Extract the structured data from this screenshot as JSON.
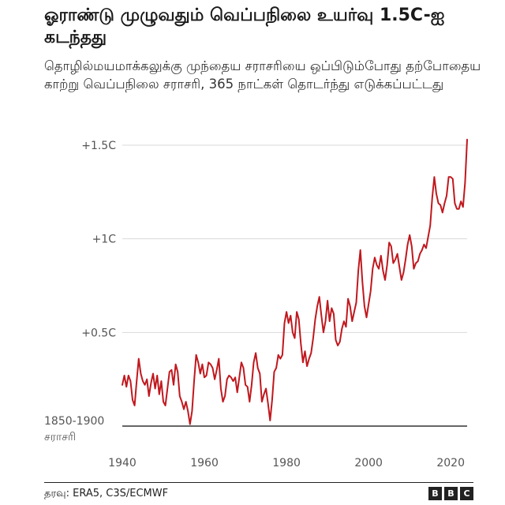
{
  "title": "ஓராண்டு முழுவதும் வெப்பநிலை உயர்வு 1.5C-ஐ கடந்தது",
  "subtitle": "தொழில்மயமாக்கலுக்கு முந்தைய சராசரியை ஒப்பிடும்போது தற்போதைய காற்று வெப்பநிலை சராசரி, 365 நாட்கள் தொடர்ந்து எடுக்கப்பட்டது",
  "source": "தரவு: ERA5, C3S/ECMWF",
  "logo_letters": [
    "B",
    "B",
    "C"
  ],
  "chart_data": {
    "type": "line",
    "xlim": [
      1940,
      2024
    ],
    "ylim": [
      0,
      1.55
    ],
    "x_ticks": [
      "1940",
      "1960",
      "1980",
      "2000",
      "2020"
    ],
    "y_ticks": [
      {
        "value": 0.5,
        "label": "+0.5C"
      },
      {
        "value": 1.0,
        "label": "+1C"
      },
      {
        "value": 1.5,
        "label": "+1.5C"
      }
    ],
    "baseline_label": [
      "1850-1900",
      "சராசரி"
    ],
    "grid": true,
    "colors": {
      "line": "#c0181e",
      "grid": "#d9d9d9",
      "baseline": "#333333"
    },
    "series": [
      {
        "values": [
          [
            1940.0,
            0.22
          ],
          [
            1940.5,
            0.27
          ],
          [
            1941.0,
            0.21
          ],
          [
            1941.5,
            0.27
          ],
          [
            1942.0,
            0.24
          ],
          [
            1942.5,
            0.14
          ],
          [
            1943.0,
            0.11
          ],
          [
            1943.5,
            0.24
          ],
          [
            1944.0,
            0.36
          ],
          [
            1944.5,
            0.28
          ],
          [
            1945.0,
            0.24
          ],
          [
            1945.5,
            0.22
          ],
          [
            1946.0,
            0.25
          ],
          [
            1946.5,
            0.16
          ],
          [
            1947.0,
            0.23
          ],
          [
            1947.5,
            0.28
          ],
          [
            1948.0,
            0.2
          ],
          [
            1948.5,
            0.27
          ],
          [
            1949.0,
            0.17
          ],
          [
            1949.5,
            0.24
          ],
          [
            1950.0,
            0.13
          ],
          [
            1950.5,
            0.11
          ],
          [
            1951.0,
            0.2
          ],
          [
            1951.5,
            0.29
          ],
          [
            1952.0,
            0.3
          ],
          [
            1952.5,
            0.22
          ],
          [
            1953.0,
            0.33
          ],
          [
            1953.5,
            0.29
          ],
          [
            1954.0,
            0.16
          ],
          [
            1954.5,
            0.13
          ],
          [
            1955.0,
            0.09
          ],
          [
            1955.5,
            0.13
          ],
          [
            1956.0,
            0.08
          ],
          [
            1956.5,
            0.01
          ],
          [
            1957.0,
            0.08
          ],
          [
            1957.5,
            0.24
          ],
          [
            1958.0,
            0.38
          ],
          [
            1958.5,
            0.34
          ],
          [
            1959.0,
            0.28
          ],
          [
            1959.5,
            0.33
          ],
          [
            1960.0,
            0.26
          ],
          [
            1960.5,
            0.27
          ],
          [
            1961.0,
            0.34
          ],
          [
            1961.5,
            0.33
          ],
          [
            1962.0,
            0.31
          ],
          [
            1962.5,
            0.25
          ],
          [
            1963.0,
            0.3
          ],
          [
            1963.5,
            0.36
          ],
          [
            1964.0,
            0.2
          ],
          [
            1964.5,
            0.13
          ],
          [
            1965.0,
            0.16
          ],
          [
            1965.5,
            0.25
          ],
          [
            1966.0,
            0.27
          ],
          [
            1966.5,
            0.26
          ],
          [
            1967.0,
            0.24
          ],
          [
            1967.5,
            0.26
          ],
          [
            1968.0,
            0.18
          ],
          [
            1968.5,
            0.26
          ],
          [
            1969.0,
            0.34
          ],
          [
            1969.5,
            0.31
          ],
          [
            1970.0,
            0.22
          ],
          [
            1970.5,
            0.21
          ],
          [
            1971.0,
            0.13
          ],
          [
            1971.5,
            0.22
          ],
          [
            1972.0,
            0.34
          ],
          [
            1972.5,
            0.39
          ],
          [
            1973.0,
            0.31
          ],
          [
            1973.5,
            0.28
          ],
          [
            1974.0,
            0.13
          ],
          [
            1974.5,
            0.17
          ],
          [
            1975.0,
            0.2
          ],
          [
            1975.5,
            0.12
          ],
          [
            1976.0,
            0.03
          ],
          [
            1976.5,
            0.14
          ],
          [
            1977.0,
            0.29
          ],
          [
            1977.5,
            0.31
          ],
          [
            1978.0,
            0.38
          ],
          [
            1978.5,
            0.36
          ],
          [
            1979.0,
            0.38
          ],
          [
            1979.5,
            0.55
          ],
          [
            1980.0,
            0.61
          ],
          [
            1980.5,
            0.55
          ],
          [
            1981.0,
            0.59
          ],
          [
            1981.5,
            0.5
          ],
          [
            1982.0,
            0.47
          ],
          [
            1982.5,
            0.61
          ],
          [
            1983.0,
            0.57
          ],
          [
            1983.5,
            0.44
          ],
          [
            1984.0,
            0.34
          ],
          [
            1984.5,
            0.4
          ],
          [
            1985.0,
            0.32
          ],
          [
            1985.5,
            0.36
          ],
          [
            1986.0,
            0.39
          ],
          [
            1986.5,
            0.47
          ],
          [
            1987.0,
            0.57
          ],
          [
            1987.5,
            0.64
          ],
          [
            1988.0,
            0.69
          ],
          [
            1988.5,
            0.59
          ],
          [
            1989.0,
            0.5
          ],
          [
            1989.5,
            0.56
          ],
          [
            1990.0,
            0.67
          ],
          [
            1990.5,
            0.56
          ],
          [
            1991.0,
            0.63
          ],
          [
            1991.5,
            0.6
          ],
          [
            1992.0,
            0.46
          ],
          [
            1992.5,
            0.43
          ],
          [
            1993.0,
            0.45
          ],
          [
            1993.5,
            0.52
          ],
          [
            1994.0,
            0.56
          ],
          [
            1994.5,
            0.53
          ],
          [
            1995.0,
            0.68
          ],
          [
            1995.5,
            0.64
          ],
          [
            1996.0,
            0.56
          ],
          [
            1996.5,
            0.61
          ],
          [
            1997.0,
            0.66
          ],
          [
            1997.5,
            0.83
          ],
          [
            1998.0,
            0.94
          ],
          [
            1998.5,
            0.77
          ],
          [
            1999.0,
            0.64
          ],
          [
            1999.5,
            0.58
          ],
          [
            2000.0,
            0.65
          ],
          [
            2000.5,
            0.72
          ],
          [
            2001.0,
            0.84
          ],
          [
            2001.5,
            0.9
          ],
          [
            2002.0,
            0.86
          ],
          [
            2002.5,
            0.84
          ],
          [
            2003.0,
            0.91
          ],
          [
            2003.5,
            0.83
          ],
          [
            2004.0,
            0.78
          ],
          [
            2004.5,
            0.86
          ],
          [
            2005.0,
            0.98
          ],
          [
            2005.5,
            0.96
          ],
          [
            2006.0,
            0.87
          ],
          [
            2006.5,
            0.89
          ],
          [
            2007.0,
            0.92
          ],
          [
            2007.5,
            0.85
          ],
          [
            2008.0,
            0.78
          ],
          [
            2008.5,
            0.82
          ],
          [
            2009.0,
            0.89
          ],
          [
            2009.5,
            0.97
          ],
          [
            2010.0,
            1.02
          ],
          [
            2010.5,
            0.96
          ],
          [
            2011.0,
            0.84
          ],
          [
            2011.5,
            0.87
          ],
          [
            2012.0,
            0.88
          ],
          [
            2012.5,
            0.92
          ],
          [
            2013.0,
            0.94
          ],
          [
            2013.5,
            0.97
          ],
          [
            2014.0,
            0.95
          ],
          [
            2014.5,
            1.01
          ],
          [
            2015.0,
            1.07
          ],
          [
            2015.5,
            1.22
          ],
          [
            2016.0,
            1.33
          ],
          [
            2016.5,
            1.24
          ],
          [
            2017.0,
            1.19
          ],
          [
            2017.5,
            1.18
          ],
          [
            2018.0,
            1.14
          ],
          [
            2018.5,
            1.19
          ],
          [
            2019.0,
            1.23
          ],
          [
            2019.5,
            1.33
          ],
          [
            2020.0,
            1.33
          ],
          [
            2020.5,
            1.32
          ],
          [
            2021.0,
            1.19
          ],
          [
            2021.5,
            1.16
          ],
          [
            2022.0,
            1.16
          ],
          [
            2022.5,
            1.2
          ],
          [
            2023.0,
            1.17
          ],
          [
            2023.5,
            1.3
          ],
          [
            2024.0,
            1.53
          ]
        ]
      }
    ]
  }
}
